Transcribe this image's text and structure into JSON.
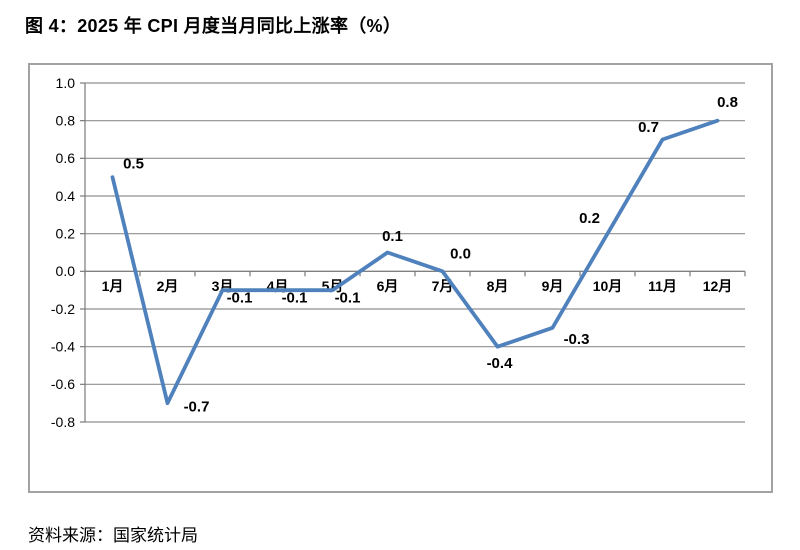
{
  "title": "图 4：2025 年 CPI 月度当月同比上涨率（%）",
  "source": "资料来源：国家统计局",
  "chart_data": {
    "type": "line",
    "title": "图 4：2025 年 CPI 月度当月同比上涨率（%）",
    "categories": [
      "1月",
      "2月",
      "3月",
      "4月",
      "5月",
      "6月",
      "7月",
      "8月",
      "9月",
      "10月",
      "11月",
      "12月"
    ],
    "series": [
      {
        "values": [
          0.5,
          -0.7,
          -0.1,
          -0.1,
          -0.1,
          0.1,
          0.0,
          -0.4,
          -0.3,
          0.2,
          0.7,
          0.8
        ]
      }
    ],
    "data_labels": [
      "0.5",
      "-0.7",
      "-0.1",
      "-0.1",
      "-0.1",
      "0.1",
      "0.0",
      "-0.4",
      "-0.3",
      "0.2",
      "0.7",
      "0.8"
    ],
    "y_ticks": [
      "1.0",
      "0.8",
      "0.6",
      "0.4",
      "0.2",
      "0.0",
      "-0.2",
      "-0.4",
      "-0.6",
      "-0.8"
    ],
    "ylim": [
      -0.8,
      1.0
    ],
    "y_step": 0.2,
    "xlabel": "",
    "ylabel": "",
    "grid": true,
    "legend_position": "none",
    "colors": {
      "line": "#4F81BD",
      "grid": "#8f8f8f",
      "axis": "#7a7a7a",
      "text": "#000000",
      "border": "#a2a2a2"
    }
  }
}
